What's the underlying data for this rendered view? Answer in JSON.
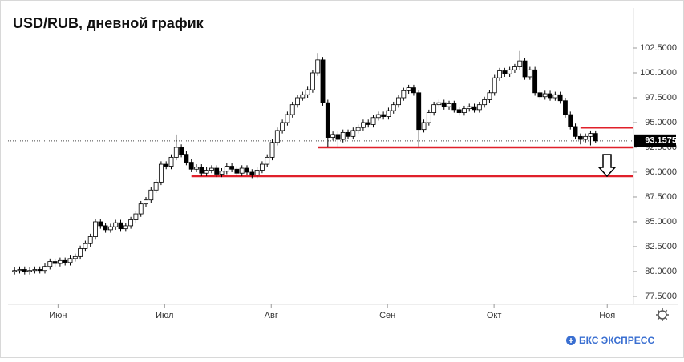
{
  "chart_data": {
    "type": "candlestick",
    "title": "USD/RUB, дневной график",
    "brand": "БКС ЭКСПРЕСС",
    "open": [
      80.0,
      80.1,
      80.2,
      80.0,
      80.1,
      80.2,
      80.1,
      80.5,
      81.0,
      80.8,
      81.1,
      80.9,
      81.3,
      81.5,
      82.3,
      82.8,
      83.5,
      85.0,
      84.6,
      84.2,
      84.5,
      84.9,
      84.3,
      84.6,
      85.2,
      85.8,
      86.8,
      87.2,
      88.2,
      89.0,
      90.8,
      90.6,
      91.5,
      92.5,
      91.8,
      91.0,
      90.3,
      90.5,
      89.9,
      90.2,
      90.4,
      89.8,
      90.1,
      90.6,
      90.3,
      89.9,
      90.4,
      90.0,
      89.7,
      90.2,
      90.8,
      91.5,
      93.0,
      94.2,
      95.0,
      95.8,
      96.8,
      97.5,
      97.8,
      98.3,
      100.0,
      101.3,
      97.0,
      93.5,
      93.8,
      93.3,
      94.0,
      93.6,
      94.2,
      94.5,
      95.0,
      94.8,
      95.5,
      95.8,
      95.6,
      96.2,
      96.8,
      97.5,
      98.2,
      98.5,
      98.0,
      94.3,
      95.0,
      96.0,
      96.8,
      97.0,
      96.6,
      96.9,
      96.3,
      96.0,
      96.4,
      96.6,
      96.3,
      96.8,
      97.3,
      98.0,
      99.5,
      100.2,
      99.9,
      100.3,
      100.6,
      101.2,
      99.6,
      100.3,
      98.0,
      97.6,
      97.9,
      97.5,
      97.8,
      97.2,
      95.8,
      94.6,
      93.6,
      93.3,
      93.6,
      93.9
    ],
    "high": [
      80.4,
      80.5,
      80.5,
      80.4,
      80.5,
      80.5,
      80.8,
      81.3,
      81.3,
      81.4,
      81.4,
      81.6,
      81.8,
      82.6,
      83.1,
      83.8,
      85.3,
      85.3,
      84.9,
      84.8,
      85.2,
      85.2,
      84.9,
      85.5,
      86.1,
      87.1,
      87.5,
      88.5,
      89.3,
      91.1,
      91.1,
      91.8,
      93.8,
      92.8,
      92.1,
      91.3,
      90.8,
      90.8,
      90.5,
      90.7,
      90.7,
      90.4,
      90.9,
      90.9,
      90.6,
      90.7,
      90.7,
      90.3,
      90.5,
      91.1,
      91.8,
      93.3,
      94.5,
      95.3,
      96.1,
      97.1,
      97.8,
      98.1,
      98.6,
      100.3,
      102.0,
      101.6,
      97.3,
      94.1,
      94.1,
      94.3,
      94.3,
      94.5,
      94.8,
      95.3,
      95.3,
      95.8,
      96.1,
      96.1,
      96.5,
      97.1,
      97.8,
      98.5,
      98.8,
      98.8,
      98.3,
      95.3,
      96.3,
      97.1,
      97.3,
      97.3,
      97.2,
      97.2,
      96.6,
      96.7,
      96.9,
      96.9,
      97.1,
      97.6,
      98.3,
      99.8,
      100.5,
      100.5,
      100.6,
      100.9,
      102.2,
      101.5,
      100.6,
      100.6,
      98.3,
      98.2,
      98.2,
      98.1,
      98.1,
      97.5,
      96.1,
      94.9,
      93.9,
      93.9,
      94.2,
      94.2
    ],
    "low": [
      79.7,
      79.8,
      79.7,
      79.7,
      79.8,
      79.8,
      79.8,
      80.2,
      80.5,
      80.5,
      80.6,
      80.6,
      81.0,
      81.2,
      82.0,
      82.5,
      83.2,
      84.3,
      83.9,
      83.9,
      84.2,
      84.0,
      84.0,
      84.3,
      84.9,
      85.5,
      86.5,
      86.9,
      87.9,
      88.7,
      90.3,
      90.3,
      91.2,
      91.5,
      90.7,
      90.0,
      90.0,
      89.6,
      89.6,
      89.9,
      89.5,
      89.5,
      89.8,
      90.0,
      89.6,
      89.6,
      89.7,
      89.4,
      89.4,
      89.9,
      90.5,
      91.2,
      92.7,
      93.9,
      94.7,
      95.5,
      96.5,
      97.2,
      97.5,
      98.0,
      99.7,
      96.7,
      92.5,
      93.2,
      92.6,
      93.0,
      93.3,
      93.3,
      93.9,
      94.2,
      94.5,
      94.5,
      95.2,
      95.3,
      95.3,
      95.9,
      96.5,
      97.2,
      97.9,
      97.7,
      92.6,
      94.0,
      94.7,
      95.7,
      96.5,
      96.3,
      96.3,
      96.0,
      95.7,
      95.7,
      96.1,
      96.0,
      96.0,
      96.5,
      97.0,
      97.7,
      99.2,
      99.6,
      99.6,
      100.0,
      100.3,
      99.3,
      99.3,
      97.7,
      97.3,
      97.3,
      97.2,
      97.2,
      96.9,
      95.5,
      94.3,
      93.3,
      92.8,
      93.0,
      92.7,
      92.9
    ],
    "close": [
      80.1,
      80.2,
      80.0,
      80.1,
      80.2,
      80.1,
      80.5,
      81.0,
      80.8,
      81.1,
      80.9,
      81.3,
      81.5,
      82.3,
      82.8,
      83.5,
      85.0,
      84.6,
      84.2,
      84.5,
      84.9,
      84.3,
      84.6,
      85.2,
      85.8,
      86.8,
      87.2,
      88.2,
      89.0,
      90.8,
      90.6,
      91.5,
      92.5,
      91.8,
      91.0,
      90.3,
      90.5,
      89.9,
      90.2,
      90.4,
      89.8,
      90.1,
      90.6,
      90.3,
      89.9,
      90.4,
      90.0,
      89.7,
      90.2,
      90.8,
      91.5,
      93.0,
      94.2,
      95.0,
      95.8,
      96.8,
      97.5,
      97.8,
      98.3,
      100.0,
      101.3,
      97.0,
      93.5,
      93.8,
      93.3,
      94.0,
      93.6,
      94.2,
      94.5,
      95.0,
      94.8,
      95.5,
      95.8,
      95.6,
      96.2,
      96.8,
      97.5,
      98.2,
      98.5,
      98.0,
      94.3,
      95.0,
      96.0,
      96.8,
      97.0,
      96.6,
      96.9,
      96.3,
      96.0,
      96.4,
      96.6,
      96.3,
      96.8,
      97.3,
      98.0,
      99.5,
      100.2,
      99.9,
      100.3,
      100.6,
      101.2,
      99.6,
      100.3,
      98.0,
      97.6,
      97.9,
      97.5,
      97.8,
      97.2,
      95.8,
      94.6,
      93.6,
      93.3,
      93.6,
      93.9,
      93.1575
    ],
    "up_color": "#ffffff",
    "down_color": "#000000",
    "level_color": "#e0202a",
    "levels": [
      {
        "value": 94.5,
        "start": 112
      },
      {
        "value": 92.5,
        "start": 60
      },
      {
        "value": 89.6,
        "start": 35
      }
    ],
    "xlim": [
      -1.3,
      122.5
    ],
    "xticks": [
      {
        "value": 8.6,
        "label": "Июн"
      },
      {
        "value": 29.7,
        "label": "Июл"
      },
      {
        "value": 50.8,
        "label": "Авг"
      },
      {
        "value": 73.8,
        "label": "Сен"
      },
      {
        "value": 94.9,
        "label": "Окт"
      },
      {
        "value": 117.3,
        "label": "Ноя"
      }
    ],
    "ylim": [
      76.69,
      106.13
    ],
    "yticks": [
      {
        "value": 77.5,
        "label": "77.5000"
      },
      {
        "value": 80,
        "label": "80.0000"
      },
      {
        "value": 82.5,
        "label": "82.5000"
      },
      {
        "value": 85,
        "label": "85.0000"
      },
      {
        "value": 87.5,
        "label": "87.5000"
      },
      {
        "value": 90,
        "label": "90.0000"
      },
      {
        "value": 92.5,
        "label": "92.5000"
      },
      {
        "value": 95,
        "label": "95.0000"
      },
      {
        "value": 97.5,
        "label": "97.5000"
      },
      {
        "value": 100,
        "label": "100.0000"
      },
      {
        "value": 102.5,
        "label": "102.5000"
      }
    ]
  }
}
